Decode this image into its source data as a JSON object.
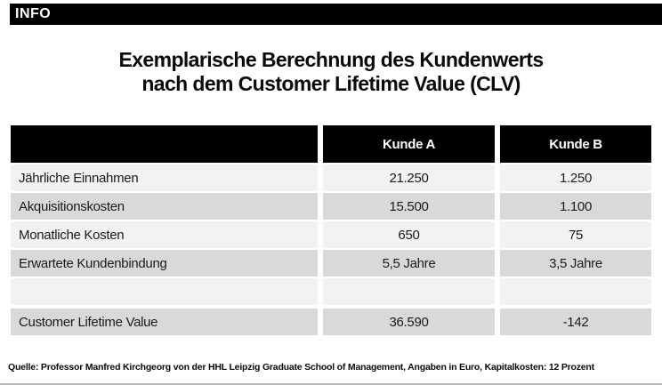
{
  "badge": {
    "label": "INFO"
  },
  "title": {
    "line1": "Exemplarische Berechnung des Kundenwerts",
    "line2": "nach dem Customer Lifetime Value (CLV)"
  },
  "table": {
    "columns": [
      "",
      "Kunde A",
      "Kunde B"
    ],
    "rows": [
      {
        "label": "Jährliche Einnahmen",
        "kunde_a": "21.250",
        "kunde_b": "1.250"
      },
      {
        "label": "Akquisitionskosten",
        "kunde_a": "15.500",
        "kunde_b": "1.100"
      },
      {
        "label": "Monatliche Kosten",
        "kunde_a": "650",
        "kunde_b": "75"
      },
      {
        "label": "Erwartete Kundenbindung",
        "kunde_a": "5,5 Jahre",
        "kunde_b": "3,5 Jahre"
      },
      {
        "label": "",
        "kunde_a": "",
        "kunde_b": ""
      },
      {
        "label": "Customer Lifetime Value",
        "kunde_a": "36.590",
        "kunde_b": "-142"
      }
    ]
  },
  "source": "Quelle: Professor Manfred Kirchgeorg von der HHL Leipzig Graduate School of Management, Angaben in Euro, Kapitalkosten: 12 Prozent",
  "colors": {
    "header_bg": "#000000",
    "header_text": "#ffffff",
    "row_light": "#f2f2f3",
    "row_dark": "#d8d9da",
    "title_text": "#0a0a0a"
  },
  "chart_data": {
    "type": "table",
    "title": "Exemplarische Berechnung des Kundenwerts nach dem Customer Lifetime Value (CLV)",
    "columns": [
      "",
      "Kunde A",
      "Kunde B"
    ],
    "rows": [
      [
        "Jährliche Einnahmen",
        "21.250",
        "1.250"
      ],
      [
        "Akquisitionskosten",
        "15.500",
        "1.100"
      ],
      [
        "Monatliche Kosten",
        "650",
        "75"
      ],
      [
        "Erwartete Kundenbindung",
        "5,5 Jahre",
        "3,5 Jahre"
      ],
      [
        "",
        "",
        ""
      ],
      [
        "Customer Lifetime Value",
        "36.590",
        "-142"
      ]
    ],
    "units": "Angaben in Euro",
    "source": "Quelle: Professor Manfred Kirchgeorg von der HHL Leipzig Graduate School of Management, Angaben in Euro, Kapitalkosten: 12 Prozent"
  }
}
